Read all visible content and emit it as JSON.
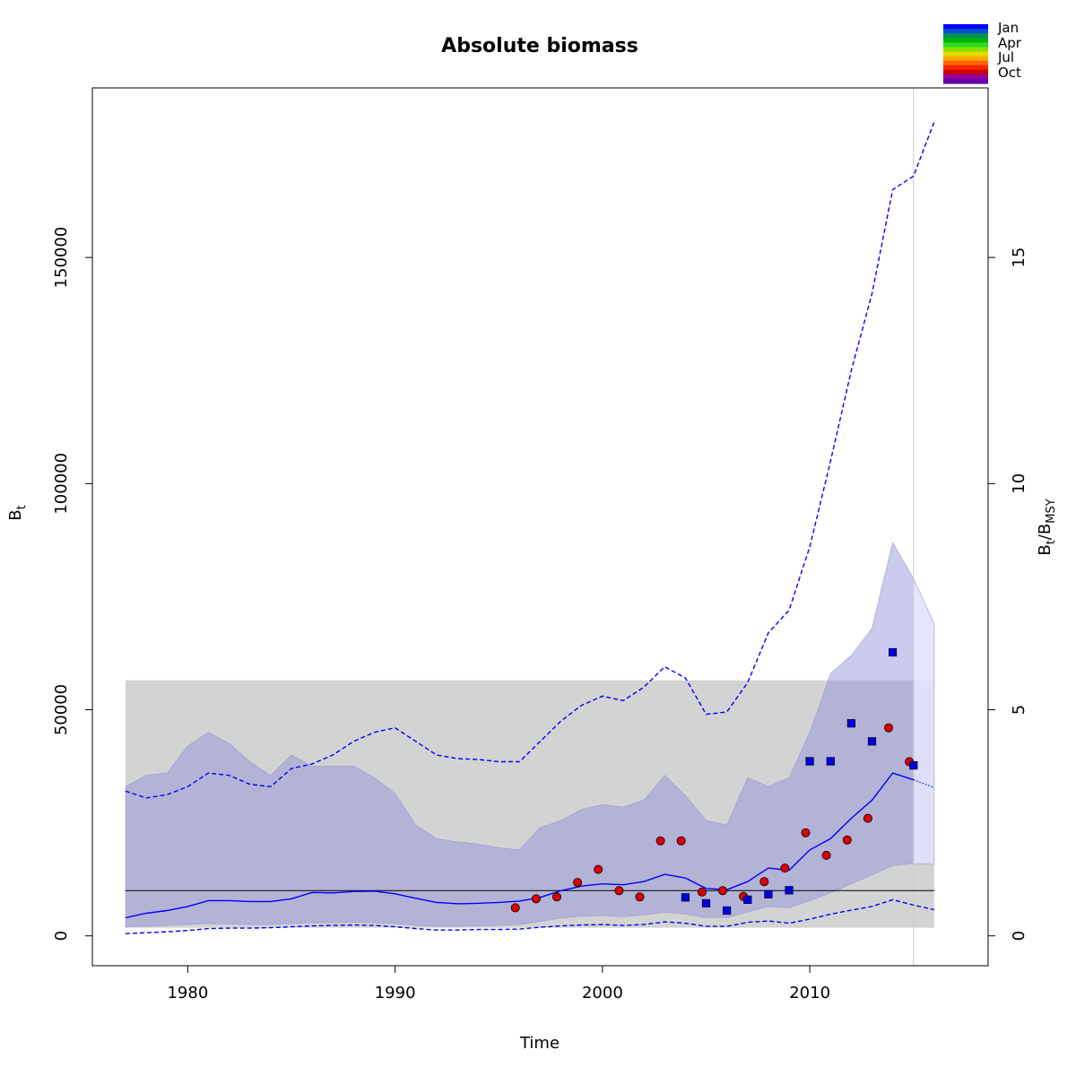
{
  "chart_data": {
    "type": "line",
    "title": "Absolute biomass",
    "xlabel": "Time",
    "ylabel": "B",
    "ylabel_sub": "t",
    "y2label": "B",
    "y2label_sub": "t",
    "y2label_slash": "/B",
    "y2label_sub2": "MSY",
    "xlim": [
      1975.4,
      2018.6
    ],
    "ylim": [
      -6600,
      187500
    ],
    "y2_scale": 10000,
    "x_ticks": [
      1980,
      1990,
      2000,
      2010
    ],
    "y_ticks": [
      0,
      50000,
      100000,
      150000
    ],
    "y2_ticks": [
      0,
      5,
      10,
      15
    ],
    "grid": false,
    "legend": {
      "placement": "top-right",
      "labels": [
        "Jan",
        "Apr",
        "Jul",
        "Oct"
      ],
      "colors": [
        "#0000ff",
        "#0050cc",
        "#0a8f5a",
        "#00b400",
        "#22dd22",
        "#88e000",
        "#dddd00",
        "#ffaa00",
        "#ff6600",
        "#ff2200",
        "#cc0000",
        "#990099",
        "#6600aa"
      ]
    },
    "colors": {
      "line": "#0000ff",
      "band": "#bbbbd9",
      "band_proj": "#e0e0ff",
      "bmsy_ci": "#d3d3d3",
      "index1": "#dd0000",
      "index2": "#0000dd",
      "vline": "#cccccc"
    },
    "bmsy": 10000,
    "bmsy_ci": [
      1800,
      56500
    ],
    "x_end_fit": 2015,
    "vline_x": 2015,
    "series": [
      {
        "x": [
          1977,
          1978,
          1979,
          1980,
          1981,
          1982,
          1983,
          1984,
          1985,
          1986,
          1987,
          1988,
          1989,
          1990,
          1991,
          1992,
          1993,
          1994,
          1995,
          1996,
          1997,
          1998,
          1999,
          2000,
          2001,
          2002,
          2003,
          2004,
          2005,
          2006,
          2007,
          2008,
          2009,
          2010,
          2011,
          2012,
          2013,
          2014,
          2015
        ],
        "y": [
          4000,
          5000,
          5600,
          6500,
          7800,
          7800,
          7600,
          7600,
          8200,
          9600,
          9500,
          9800,
          9900,
          9300,
          8300,
          7400,
          7100,
          7200,
          7400,
          7700,
          8500,
          10000,
          11000,
          11500,
          11300,
          12000,
          13600,
          12800,
          10500,
          10200,
          12000,
          15000,
          14500,
          19000,
          21500,
          26000,
          30000,
          36000,
          34500
        ]
      },
      {
        "x": [
          2015,
          2016
        ],
        "y": [
          34500,
          32800
        ]
      },
      {
        "x": [
          1977,
          1978,
          1979,
          1980,
          1981,
          1982,
          1983,
          1984,
          1985,
          1986,
          1987,
          1988,
          1989,
          1990,
          1991,
          1992,
          1993,
          1994,
          1995,
          1996,
          1997,
          1998,
          1999,
          2000,
          2001,
          2002,
          2003,
          2004,
          2005,
          2006,
          2007,
          2008,
          2009,
          2010,
          2011,
          2012,
          2013,
          2014,
          2015,
          2016
        ],
        "y": [
          32000,
          30500,
          31200,
          33000,
          36000,
          35500,
          33500,
          33000,
          37000,
          38000,
          40000,
          43000,
          45000,
          46000,
          43000,
          40000,
          39200,
          39000,
          38500,
          38500,
          43000,
          47500,
          51000,
          53000,
          52000,
          55000,
          59500,
          57000,
          49000,
          49500,
          56000,
          67000,
          72000,
          86000,
          105000,
          125000,
          142000,
          165000,
          168000,
          180000
        ]
      },
      {
        "x": [
          1977,
          1978,
          1979,
          1980,
          1981,
          1982,
          1983,
          1984,
          1985,
          1986,
          1987,
          1988,
          1989,
          1990,
          1991,
          1992,
          1993,
          1994,
          1995,
          1996,
          1997,
          1998,
          1999,
          2000,
          2001,
          2002,
          2003,
          2004,
          2005,
          2006,
          2007,
          2008,
          2009,
          2010,
          2011,
          2012,
          2013,
          2014,
          2015,
          2016
        ],
        "y": [
          500,
          700,
          900,
          1200,
          1600,
          1700,
          1700,
          1800,
          2000,
          2200,
          2300,
          2400,
          2300,
          2000,
          1600,
          1300,
          1300,
          1400,
          1400,
          1500,
          1900,
          2200,
          2400,
          2500,
          2300,
          2500,
          3100,
          2800,
          2100,
          2100,
          3000,
          3300,
          2800,
          3700,
          4800,
          5700,
          6500,
          8000,
          6800,
          5800
        ]
      }
    ],
    "band": {
      "x": [
        1977,
        1978,
        1979,
        1980,
        1981,
        1982,
        1983,
        1984,
        1985,
        1986,
        1987,
        1988,
        1989,
        1990,
        1991,
        1992,
        1993,
        1994,
        1995,
        1996,
        1997,
        1998,
        1999,
        2000,
        2001,
        2002,
        2003,
        2004,
        2005,
        2006,
        2007,
        2008,
        2009,
        2010,
        2011,
        2012,
        2013,
        2014,
        2015
      ],
      "upper": [
        33000,
        35500,
        36000,
        42000,
        45000,
        42500,
        38500,
        35500,
        40000,
        37500,
        37500,
        37500,
        35000,
        31500,
        24500,
        21500,
        20800,
        20300,
        19500,
        19000,
        24000,
        25500,
        28000,
        29000,
        28500,
        30000,
        35500,
        31000,
        25500,
        24500,
        35000,
        33000,
        35000,
        45000,
        58000,
        62000,
        68000,
        87000,
        79000
      ],
      "lower": [
        2000,
        2100,
        2300,
        2500,
        2700,
        2600,
        2500,
        2500,
        2700,
        2900,
        2900,
        3000,
        2900,
        2700,
        2300,
        2100,
        2100,
        2200,
        2300,
        2500,
        3200,
        3900,
        4300,
        4500,
        4200,
        4600,
        5200,
        4800,
        4000,
        4000,
        5300,
        6500,
        6200,
        7800,
        9500,
        11500,
        13500,
        15500,
        16000
      ]
    },
    "band_proj": {
      "x": [
        2015,
        2016
      ],
      "upper": [
        79000,
        69000
      ],
      "lower": [
        16000,
        15800
      ]
    },
    "index1": {
      "x": [
        1995.8,
        1996.8,
        1997.8,
        1998.8,
        1999.8,
        2000.8,
        2001.8,
        2002.8,
        2003.8,
        2004.8,
        2005.8,
        2006.8,
        2007.8,
        2008.8,
        2009.8,
        2010.8,
        2011.8,
        2012.8,
        2013.8,
        2014.8
      ],
      "y": [
        6200,
        8200,
        8600,
        11800,
        14700,
        10000,
        8600,
        21000,
        21000,
        9700,
        10000,
        8700,
        12000,
        15000,
        22800,
        17800,
        21200,
        26000,
        46000,
        38500
      ]
    },
    "index2": {
      "x": [
        2004,
        2005,
        2006,
        2007,
        2008,
        2009,
        2010,
        2011,
        2012,
        2013,
        2014,
        2015
      ],
      "y": [
        8500,
        7200,
        5600,
        8000,
        9200,
        10100,
        38600,
        38600,
        47000,
        43000,
        62700,
        37700
      ]
    }
  }
}
